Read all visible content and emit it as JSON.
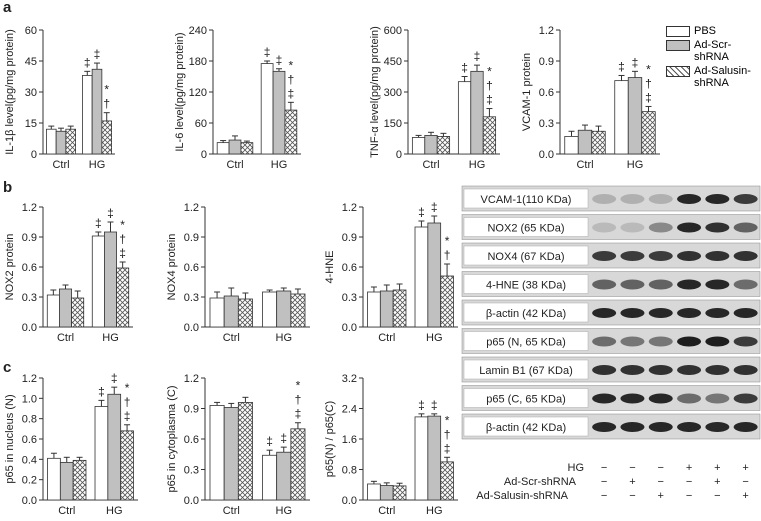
{
  "panels": [
    "a",
    "b",
    "c"
  ],
  "legend": [
    {
      "name": "PBS",
      "fill": "#ffffff"
    },
    {
      "name": "Ad-Scr-shRNA",
      "fill": "#c0c0c0"
    },
    {
      "name": "Ad-Salusin-shRNA",
      "fill": "crosshatch"
    }
  ],
  "chart_data": [
    {
      "type": "bar",
      "ylabel": "IL-1β level(pg/mg protein)",
      "categories": [
        "Ctrl",
        "HG"
      ],
      "ylim": [
        0,
        60
      ],
      "yticks": [
        0,
        15,
        30,
        45,
        60
      ],
      "series": [
        {
          "values": [
            12,
            38
          ],
          "errors": [
            1.5,
            2
          ],
          "symbols": [
            null,
            "‡"
          ]
        },
        {
          "values": [
            11,
            41
          ],
          "errors": [
            1.5,
            3
          ],
          "symbols": [
            null,
            "‡"
          ]
        },
        {
          "values": [
            12,
            16
          ],
          "errors": [
            1.5,
            4
          ],
          "symbols": [
            null,
            "*†"
          ]
        }
      ]
    },
    {
      "type": "bar",
      "ylabel": "IL-6 level(pg/mg protein)",
      "categories": [
        "Ctrl",
        "HG"
      ],
      "ylim": [
        0,
        240
      ],
      "yticks": [
        0,
        60,
        120,
        180,
        240
      ],
      "series": [
        {
          "values": [
            22,
            175
          ],
          "errors": [
            4,
            5
          ],
          "symbols": [
            null,
            "‡"
          ]
        },
        {
          "values": [
            27,
            160
          ],
          "errors": [
            8,
            5
          ],
          "symbols": [
            null,
            "‡"
          ]
        },
        {
          "values": [
            22,
            85
          ],
          "errors": [
            3,
            15
          ],
          "symbols": [
            null,
            "*†‡"
          ]
        }
      ]
    },
    {
      "type": "bar",
      "ylabel": "TNF-α level(pg/mg protein)",
      "categories": [
        "Ctrl",
        "HG"
      ],
      "ylim": [
        0,
        600
      ],
      "yticks": [
        0,
        150,
        300,
        450,
        600
      ],
      "series": [
        {
          "values": [
            80,
            350
          ],
          "errors": [
            10,
            25
          ],
          "symbols": [
            null,
            "‡"
          ]
        },
        {
          "values": [
            90,
            400
          ],
          "errors": [
            15,
            30
          ],
          "symbols": [
            null,
            "‡"
          ]
        },
        {
          "values": [
            85,
            180
          ],
          "errors": [
            15,
            40
          ],
          "symbols": [
            null,
            "*†‡"
          ]
        }
      ]
    },
    {
      "type": "bar",
      "ylabel": "VCAM-1 protein",
      "categories": [
        "Ctrl",
        "HG"
      ],
      "ylim": [
        0,
        1.2
      ],
      "yticks": [
        {
          "value": 0,
          "label": "0.0"
        },
        0.3,
        0.6,
        0.9,
        1.2
      ],
      "series": [
        {
          "values": [
            0.17,
            0.71
          ],
          "errors": [
            0.05,
            0.05
          ],
          "symbols": [
            null,
            "‡"
          ]
        },
        {
          "values": [
            0.23,
            0.74
          ],
          "errors": [
            0.05,
            0.06
          ],
          "symbols": [
            null,
            "‡"
          ]
        },
        {
          "values": [
            0.22,
            0.41
          ],
          "errors": [
            0.05,
            0.05
          ],
          "symbols": [
            null,
            "*†‡"
          ]
        }
      ]
    },
    {
      "type": "bar",
      "ylabel": "NOX2 protein",
      "categories": [
        "Ctrl",
        "HG"
      ],
      "ylim": [
        0,
        1.2
      ],
      "yticks": [
        {
          "value": 0,
          "label": "0.0"
        },
        0.3,
        0.6,
        0.9,
        1.2
      ],
      "series": [
        {
          "values": [
            0.32,
            0.91
          ],
          "errors": [
            0.05,
            0.04
          ],
          "symbols": [
            null,
            "‡"
          ]
        },
        {
          "values": [
            0.38,
            0.95
          ],
          "errors": [
            0.04,
            0.1
          ],
          "symbols": [
            null,
            "‡"
          ]
        },
        {
          "values": [
            0.29,
            0.59
          ],
          "errors": [
            0.07,
            0.06
          ],
          "symbols": [
            null,
            "*†‡"
          ]
        }
      ]
    },
    {
      "type": "bar",
      "ylabel": "NOX4 protein",
      "categories": [
        "Ctrl",
        "HG"
      ],
      "ylim": [
        0,
        1.2
      ],
      "yticks": [
        {
          "value": 0,
          "label": "0.0"
        },
        0.3,
        0.6,
        0.9,
        1.2
      ],
      "series": [
        {
          "values": [
            0.29,
            0.35
          ],
          "errors": [
            0.06,
            0.02
          ],
          "symbols": [
            null,
            null
          ]
        },
        {
          "values": [
            0.31,
            0.36
          ],
          "errors": [
            0.08,
            0.03
          ],
          "symbols": [
            null,
            null
          ]
        },
        {
          "values": [
            0.28,
            0.33
          ],
          "errors": [
            0.06,
            0.05
          ],
          "symbols": [
            null,
            null
          ]
        }
      ]
    },
    {
      "type": "bar",
      "ylabel": "4-HNE",
      "categories": [
        "Ctrl",
        "HG"
      ],
      "ylim": [
        0,
        1.2
      ],
      "yticks": [
        {
          "value": 0,
          "label": "0.0"
        },
        0.3,
        0.6,
        0.9,
        1.2
      ],
      "series": [
        {
          "values": [
            0.35,
            1.0
          ],
          "errors": [
            0.05,
            0.06
          ],
          "symbols": [
            null,
            "‡"
          ]
        },
        {
          "values": [
            0.36,
            1.04
          ],
          "errors": [
            0.06,
            0.07
          ],
          "symbols": [
            null,
            "‡"
          ]
        },
        {
          "values": [
            0.37,
            0.51
          ],
          "errors": [
            0.06,
            0.12
          ],
          "symbols": [
            null,
            "*†"
          ]
        }
      ]
    },
    {
      "type": "bar",
      "ylabel": "p65 in nucleus (N)",
      "categories": [
        "Ctrl",
        "HG"
      ],
      "ylim": [
        0,
        1.2
      ],
      "yticks": [
        {
          "value": 0,
          "label": "0.0"
        },
        0.2,
        0.4,
        0.6,
        0.8,
        {
          "value": 1,
          "label": "1.0"
        },
        1.2
      ],
      "series": [
        {
          "values": [
            0.41,
            0.92
          ],
          "errors": [
            0.05,
            0.06
          ],
          "symbols": [
            null,
            "‡"
          ]
        },
        {
          "values": [
            0.37,
            1.04
          ],
          "errors": [
            0.05,
            0.07
          ],
          "symbols": [
            null,
            "‡"
          ]
        },
        {
          "values": [
            0.39,
            0.68
          ],
          "errors": [
            0.03,
            0.06
          ],
          "symbols": [
            null,
            "*†‡"
          ]
        }
      ]
    },
    {
      "type": "bar",
      "ylabel": "p65 in cytoplasma (C)",
      "categories": [
        "Ctrl",
        "HG"
      ],
      "ylim": [
        0,
        1.2
      ],
      "yticks": [
        {
          "value": 0,
          "label": "0.0"
        },
        0.3,
        0.6,
        0.9,
        1.2
      ],
      "series": [
        {
          "values": [
            0.93,
            0.44
          ],
          "errors": [
            0.03,
            0.05
          ],
          "symbols": [
            null,
            "‡"
          ]
        },
        {
          "values": [
            0.91,
            0.47
          ],
          "errors": [
            0.04,
            0.05
          ],
          "symbols": [
            null,
            "‡"
          ]
        },
        {
          "values": [
            0.96,
            0.7
          ],
          "errors": [
            0.05,
            0.06
          ],
          "symbols": [
            null,
            "*†‡"
          ]
        }
      ]
    },
    {
      "type": "bar",
      "ylabel": "p65(N) / p65(C)",
      "categories": [
        "Ctrl",
        "HG"
      ],
      "ylim": [
        0,
        3.2
      ],
      "yticks": [
        {
          "value": 0,
          "label": "0.0"
        },
        0.8,
        1.6,
        2.4,
        3.2
      ],
      "series": [
        {
          "values": [
            0.42,
            2.18
          ],
          "errors": [
            0.07,
            0.08
          ],
          "symbols": [
            null,
            "‡"
          ]
        },
        {
          "values": [
            0.38,
            2.2
          ],
          "errors": [
            0.07,
            0.06
          ],
          "symbols": [
            null,
            "‡"
          ]
        },
        {
          "values": [
            0.37,
            1.0
          ],
          "errors": [
            0.07,
            0.12
          ],
          "symbols": [
            null,
            "*†‡"
          ]
        }
      ]
    }
  ],
  "blot": {
    "bands": [
      "VCAM-1(110 KDa)",
      "NOX2 (65 KDa)",
      "NOX4 (67 KDa)",
      "4-HNE (38 KDa)",
      "β-actin (42 KDa)",
      "p65 (N, 65 KDa)",
      "Lamin B1 (67 KDa)",
      "p65 (C, 65 KDa)",
      "β-actin (42 KDa)"
    ],
    "treatments": [
      {
        "label": "HG",
        "signs": [
          "−",
          "−",
          "−",
          "+",
          "+",
          "+"
        ]
      },
      {
        "label": "Ad-Scr-shRNA",
        "signs": [
          "−",
          "+",
          "−",
          "−",
          "+",
          "−"
        ]
      },
      {
        "label": "Ad-Salusin-shRNA",
        "signs": [
          "−",
          "−",
          "+",
          "−",
          "−",
          "+"
        ]
      }
    ]
  }
}
